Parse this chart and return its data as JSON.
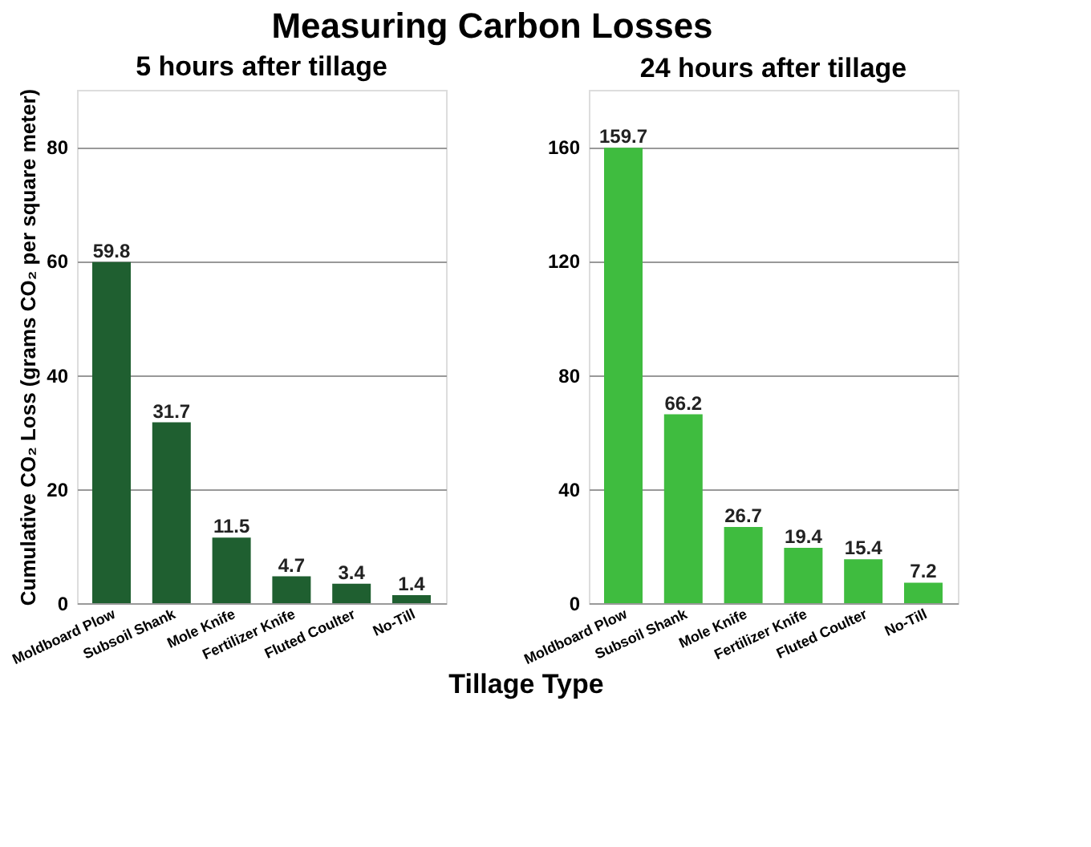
{
  "chart_data": [
    {
      "type": "bar",
      "title": "Measuring Carbon Losses",
      "subtitle": "5 hours after tillage",
      "xlabel": "Tillage Type",
      "ylabel": "Cumulative CO₂ Loss (grams CO₂ per square meter)",
      "categories": [
        "Moldboard Plow",
        "Subsoil Shank",
        "Mole Knife",
        "Fertilizer Knife",
        "Fluted Coulter",
        "No-Till"
      ],
      "values": [
        59.8,
        31.7,
        11.5,
        4.7,
        3.4,
        1.4
      ],
      "color": "#1f5f30",
      "ylim": [
        0,
        90
      ],
      "yticks": [
        0,
        20,
        40,
        60,
        80
      ],
      "grid": "y",
      "data_labels": true
    },
    {
      "type": "bar",
      "subtitle": "24 hours after tillage",
      "categories": [
        "Moldboard Plow",
        "Subsoil Shank",
        "Mole Knife",
        "Fertilizer Knife",
        "Fluted Coulter",
        "No-Till"
      ],
      "values": [
        159.7,
        66.2,
        26.7,
        19.4,
        15.4,
        7.2
      ],
      "color": "#3fbc3f",
      "ylim": [
        0,
        180
      ],
      "yticks": [
        0,
        40,
        80,
        120,
        160
      ],
      "grid": "y",
      "data_labels": true
    }
  ]
}
